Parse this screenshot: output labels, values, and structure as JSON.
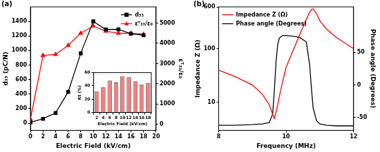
{
  "chart_data": [
    {
      "type": "line",
      "title": "(a)",
      "x": [
        0,
        2,
        4,
        6,
        8,
        10,
        12,
        14,
        16,
        18
      ],
      "x_label": "Electric Field (kV/cm)",
      "y_label": "d₃₃ (pC/N)",
      "y2_label": "εᵀ₃₃/ε₀",
      "xlim": [
        0,
        20
      ],
      "xticks": [
        0,
        2,
        4,
        6,
        8,
        10,
        12,
        14,
        16,
        18,
        20
      ],
      "ylim": [
        -100,
        1600
      ],
      "yticks": [
        0,
        200,
        400,
        600,
        800,
        1000,
        1200,
        1400
      ],
      "y2lim": [
        -300,
        5800
      ],
      "y2ticks": [
        0,
        1000,
        2000,
        3000,
        4000,
        5000
      ],
      "legend": "upper right",
      "grid": false,
      "series": [
        {
          "name": "d₃₃",
          "color": "#000000",
          "marker": "square",
          "line_style": "solid",
          "values": [
            10,
            60,
            140,
            430,
            960,
            1400,
            1290,
            1290,
            1230,
            1210
          ]
        },
        {
          "name": "εᵀ₃₃/ε₀",
          "color": "#ff0000",
          "marker": "triangle",
          "line_style": "solid",
          "axis": "y2",
          "values": [
            250,
            3400,
            3450,
            3900,
            4500,
            4850,
            4600,
            4500,
            4500,
            4450
          ]
        }
      ]
    },
    {
      "type": "bar",
      "categories": [
        "2",
        "4",
        "6",
        "8",
        "10",
        "12",
        "14",
        "16",
        "18"
      ],
      "values": [
        32,
        38,
        48,
        45,
        55,
        53,
        47,
        42,
        44
      ],
      "color": "#f08080",
      "x_label": "Electric Field (kV/cm)",
      "y_label": "Kt (%)",
      "ylim": [
        0,
        60
      ],
      "yticks": [
        0,
        20,
        40,
        60
      ],
      "grid": false
    },
    {
      "type": "line",
      "title": "(b)",
      "x": [
        8,
        8.5,
        9,
        9.3,
        9.5,
        9.6,
        9.65,
        9.7,
        9.75,
        9.8,
        9.9,
        10,
        10.2,
        10.4,
        10.6,
        10.7,
        10.75,
        10.8,
        10.9,
        11,
        11.2,
        11.5,
        12
      ],
      "x_label": "Frequency (MHz)",
      "y_label": "Impedance Z (Ω)",
      "y2_label": "Phase angle (Degrees)",
      "xlim": [
        8,
        12
      ],
      "xticks": [
        8,
        10,
        12
      ],
      "log": "y",
      "ylim": [
        3,
        600
      ],
      "yticks": [
        10,
        100,
        600
      ],
      "y2lim": [
        -70,
        120
      ],
      "y2ticks": [
        -50,
        0,
        50
      ],
      "legend": "upper left",
      "grid": false,
      "series": [
        {
          "name": "Impedance Z (Ω)",
          "color": "#ff0000",
          "line_style": "solid",
          "values": [
            40,
            30,
            21,
            14,
            9,
            6,
            5,
            6.5,
            9,
            13,
            25,
            45,
            90,
            180,
            350,
            480,
            540,
            550,
            450,
            330,
            230,
            160,
            100
          ]
        },
        {
          "name": "Phase angle (Degrees)",
          "color": "#000000",
          "line_style": "solid",
          "axis": "y2",
          "values": [
            -62,
            -62,
            -61,
            -60,
            -58,
            -45,
            -10,
            35,
            62,
            72,
            76,
            76,
            75,
            73,
            66,
            30,
            -5,
            -35,
            -55,
            -60,
            -62,
            -63,
            -63
          ]
        }
      ]
    }
  ]
}
